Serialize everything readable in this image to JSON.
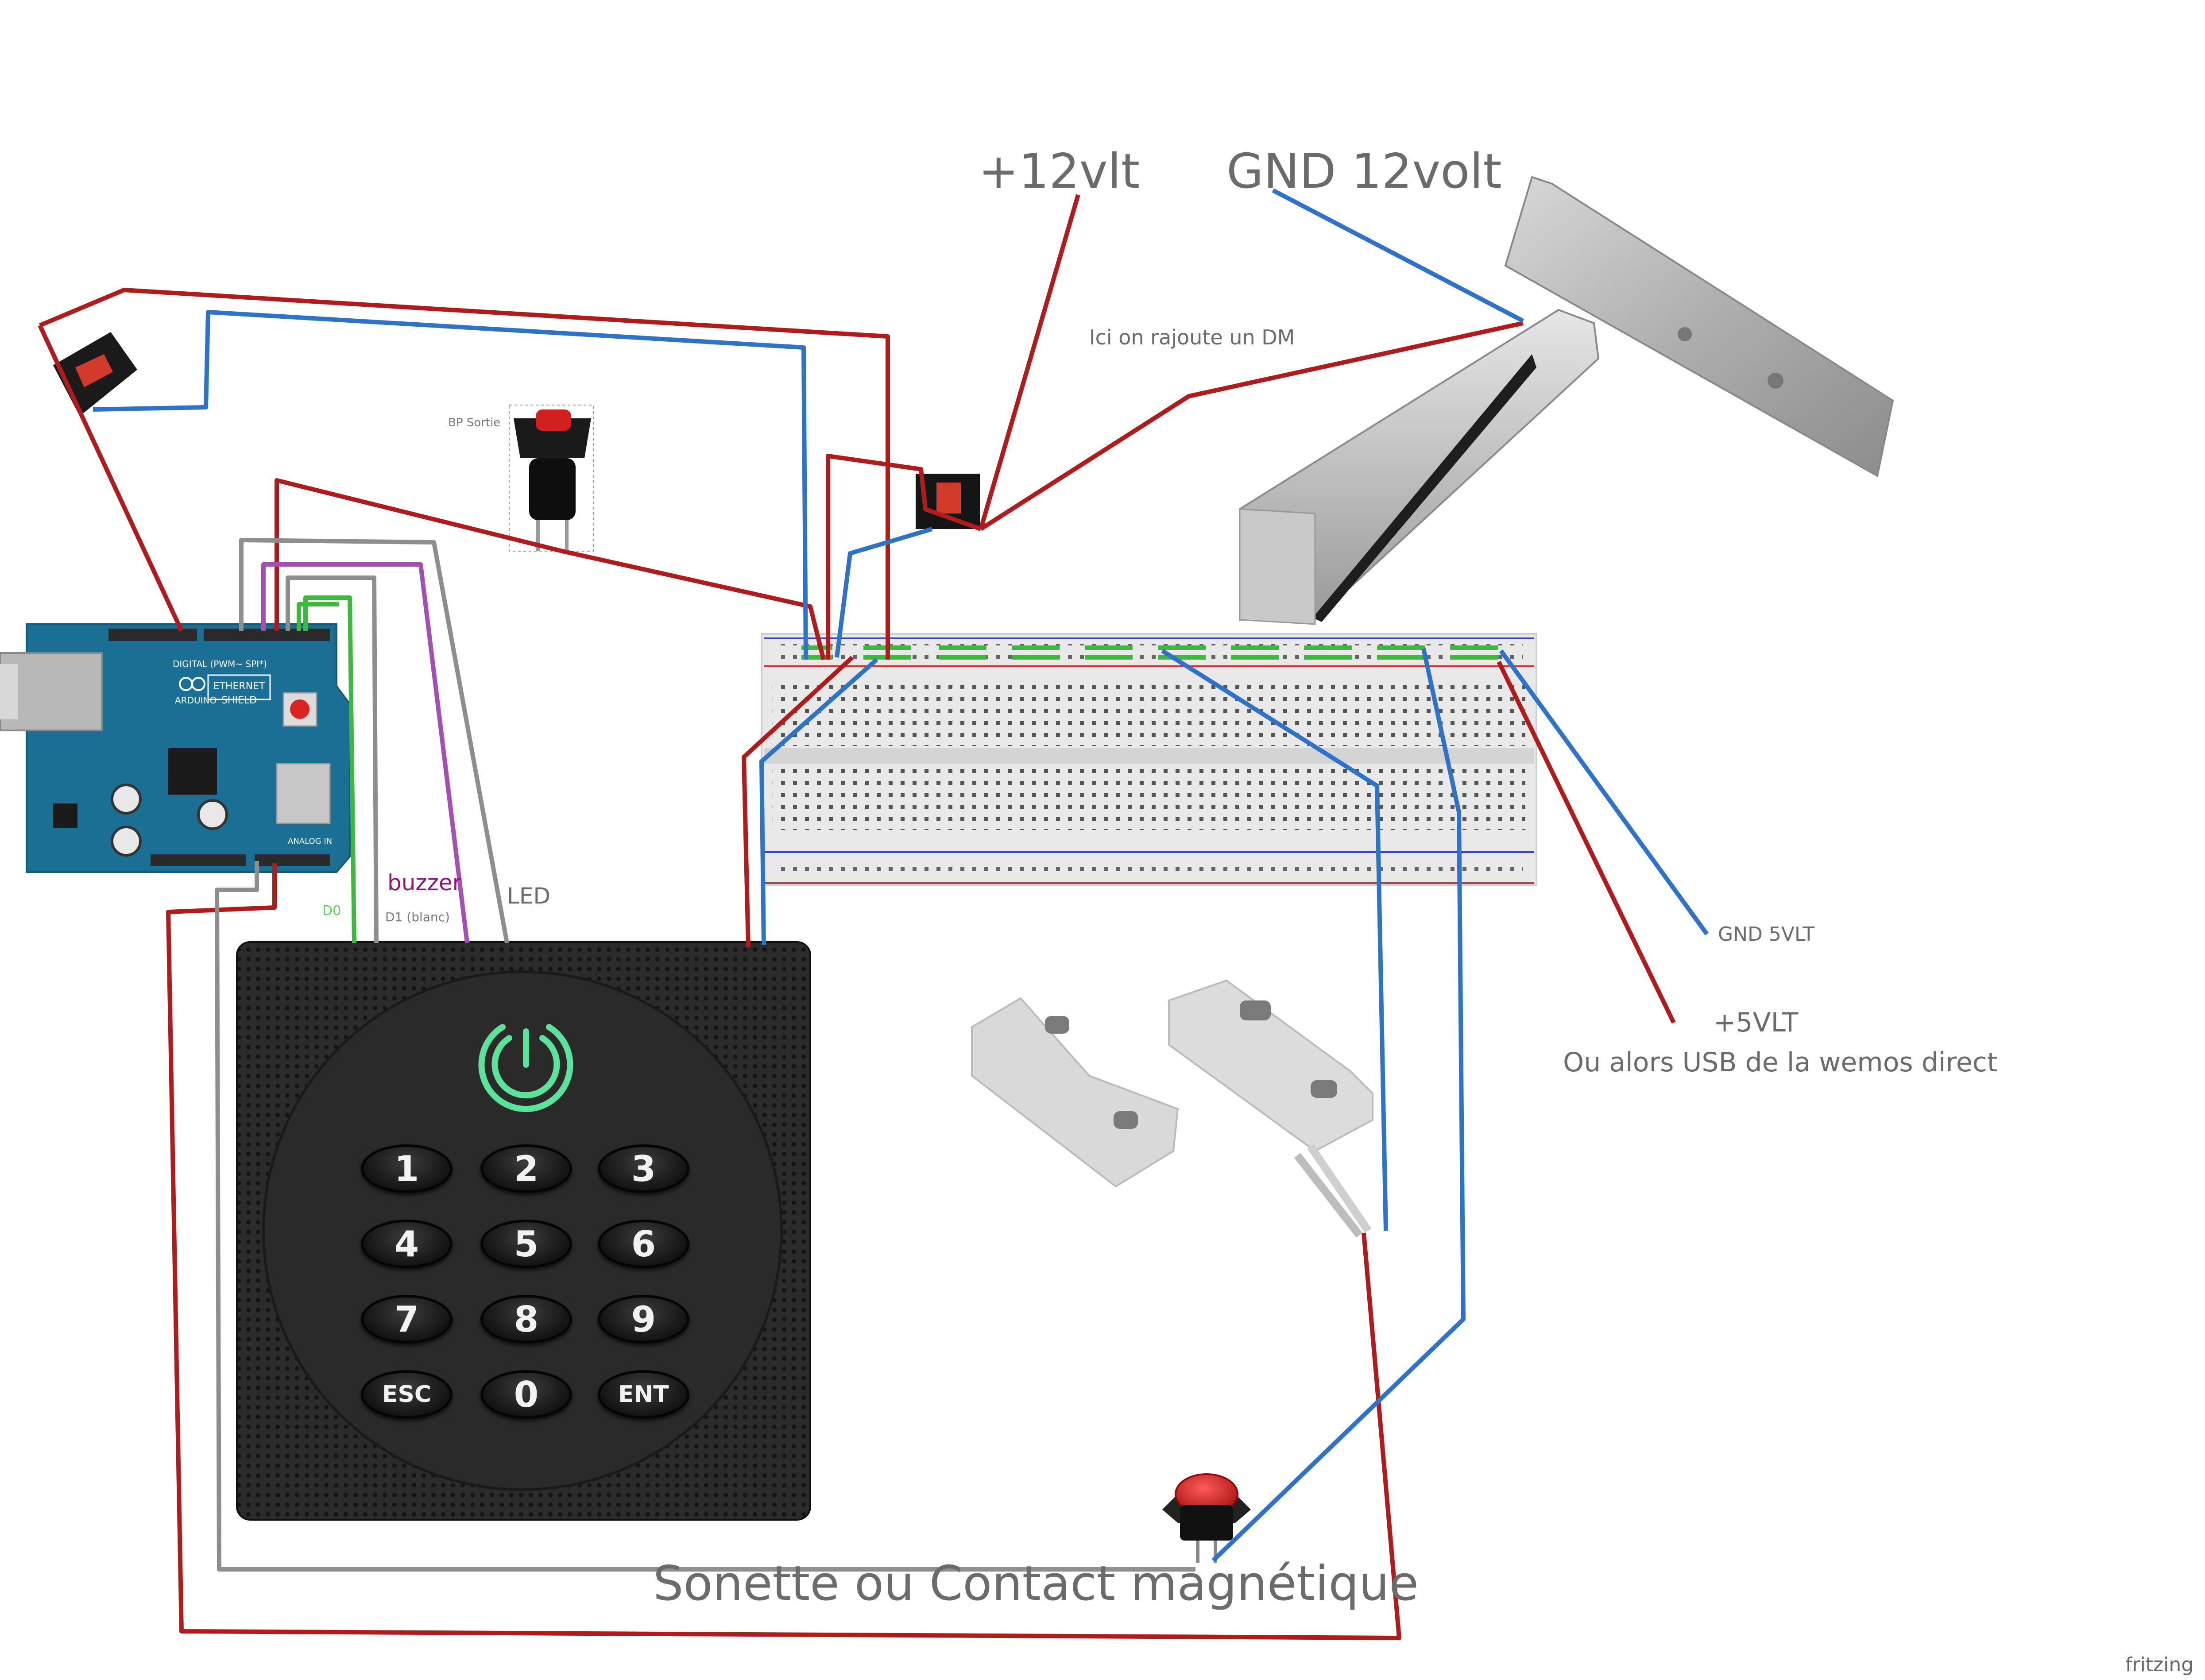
{
  "labels": {
    "plus12": "+12vlt",
    "gnd12": "GND 12volt",
    "dm_note": "Ici on rajoute un DM",
    "bp_sortie": "BP Sortie",
    "buzzer": "buzzer",
    "led": "LED",
    "d0": "D0",
    "d1": "D1 (blanc)",
    "gnd5": "GND 5VLT",
    "plus5": "+5VLT",
    "usb_note": "Ou alors USB de la wemos direct",
    "sonette": "Sonette ou Contact magnétique",
    "fritzing": "fritzing"
  },
  "arduino": {
    "brand": "ARDUINO",
    "shield": "ETHERNET SHIELD",
    "digital": "DIGITAL (PWM~ SPI*)",
    "analog": "ANALOG IN"
  },
  "keypad": {
    "keys": [
      "1",
      "2",
      "3",
      "4",
      "5",
      "6",
      "7",
      "8",
      "9",
      "ESC",
      "0",
      "ENT"
    ]
  },
  "colors": {
    "wire_red": "#b01c1c",
    "wire_blue": "#2f73c9",
    "wire_gray": "#8e8e8e",
    "wire_purple": "#a34fb3",
    "wire_green": "#3fb83f",
    "arduino_blue": "#1b6f94",
    "label_purple": "#8b1a7a",
    "label_green": "#5ad35a"
  }
}
